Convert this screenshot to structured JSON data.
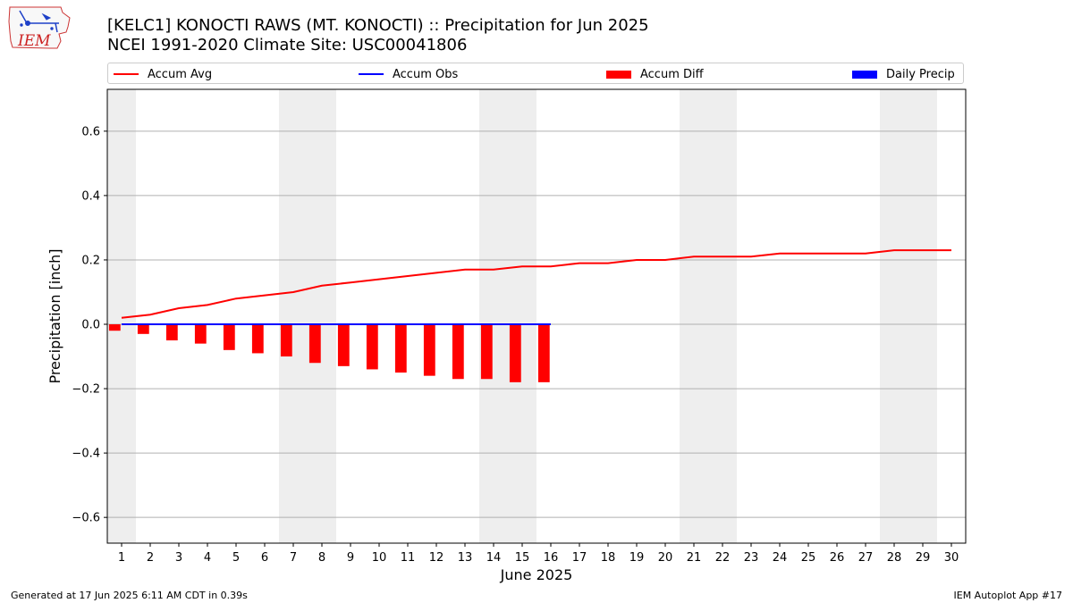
{
  "header": {
    "title_line1": "[KELC1] KONOCTI RAWS (MT. KONOCTI) :: Precipitation for Jun 2025",
    "title_line2": "NCEI 1991-2020 Climate Site: USC00041806"
  },
  "logo": {
    "text": "IEM",
    "icon": "iowa-state-outline-logo"
  },
  "footer": {
    "left": "Generated at 17 Jun 2025 6:11 AM CDT in 0.39s",
    "right": "IEM Autoplot App #17"
  },
  "colors": {
    "accum_avg": "#ff0000",
    "accum_obs": "#0000ff",
    "accum_diff": "#ff0000",
    "daily_precip": "#0000ff",
    "weekend_shade": "#eeeeee",
    "grid": "#b0b0b0"
  },
  "chart_data": {
    "type": "bar",
    "xlabel": "June 2025",
    "ylabel": "Precipitation [inch]",
    "xlim": [
      0.5,
      30.5
    ],
    "ylim": [
      -0.68,
      0.73
    ],
    "yticks": [
      -0.6,
      -0.4,
      -0.2,
      0.0,
      0.2,
      0.4,
      0.6
    ],
    "ytick_labels": [
      "−0.6",
      "−0.4",
      "−0.2",
      "0.0",
      "0.2",
      "0.4",
      "0.6"
    ],
    "x": [
      1,
      2,
      3,
      4,
      5,
      6,
      7,
      8,
      9,
      10,
      11,
      12,
      13,
      14,
      15,
      16,
      17,
      18,
      19,
      20,
      21,
      22,
      23,
      24,
      25,
      26,
      27,
      28,
      29,
      30
    ],
    "grid": "horizontal",
    "legend_position": "top",
    "weekend_days": [
      1,
      7,
      8,
      14,
      15,
      21,
      22,
      28,
      29
    ],
    "series": [
      {
        "name": "Accum Avg",
        "kind": "line",
        "x": [
          1,
          2,
          3,
          4,
          5,
          6,
          7,
          8,
          9,
          10,
          11,
          12,
          13,
          14,
          15,
          16,
          17,
          18,
          19,
          20,
          21,
          22,
          23,
          24,
          25,
          26,
          27,
          28,
          29,
          30
        ],
        "values": [
          0.02,
          0.03,
          0.05,
          0.06,
          0.08,
          0.09,
          0.1,
          0.12,
          0.13,
          0.14,
          0.15,
          0.16,
          0.17,
          0.17,
          0.18,
          0.18,
          0.19,
          0.19,
          0.2,
          0.2,
          0.21,
          0.21,
          0.21,
          0.22,
          0.22,
          0.22,
          0.22,
          0.23,
          0.23,
          0.23
        ]
      },
      {
        "name": "Accum Obs",
        "kind": "line",
        "x": [
          1,
          2,
          3,
          4,
          5,
          6,
          7,
          8,
          9,
          10,
          11,
          12,
          13,
          14,
          15,
          16
        ],
        "values": [
          0,
          0,
          0,
          0,
          0,
          0,
          0,
          0,
          0,
          0,
          0,
          0,
          0,
          0,
          0,
          0
        ]
      },
      {
        "name": "Accum Diff",
        "kind": "bar",
        "x": [
          1,
          2,
          3,
          4,
          5,
          6,
          7,
          8,
          9,
          10,
          11,
          12,
          13,
          14,
          15,
          16
        ],
        "values": [
          -0.02,
          -0.03,
          -0.05,
          -0.06,
          -0.08,
          -0.09,
          -0.1,
          -0.12,
          -0.13,
          -0.14,
          -0.15,
          -0.16,
          -0.17,
          -0.17,
          -0.18,
          -0.18
        ]
      },
      {
        "name": "Daily Precip",
        "kind": "bar",
        "x": [
          1,
          2,
          3,
          4,
          5,
          6,
          7,
          8,
          9,
          10,
          11,
          12,
          13,
          14,
          15,
          16
        ],
        "values": [
          0,
          0,
          0,
          0,
          0,
          0,
          0,
          0,
          0,
          0,
          0,
          0,
          0,
          0,
          0,
          0
        ]
      }
    ]
  }
}
